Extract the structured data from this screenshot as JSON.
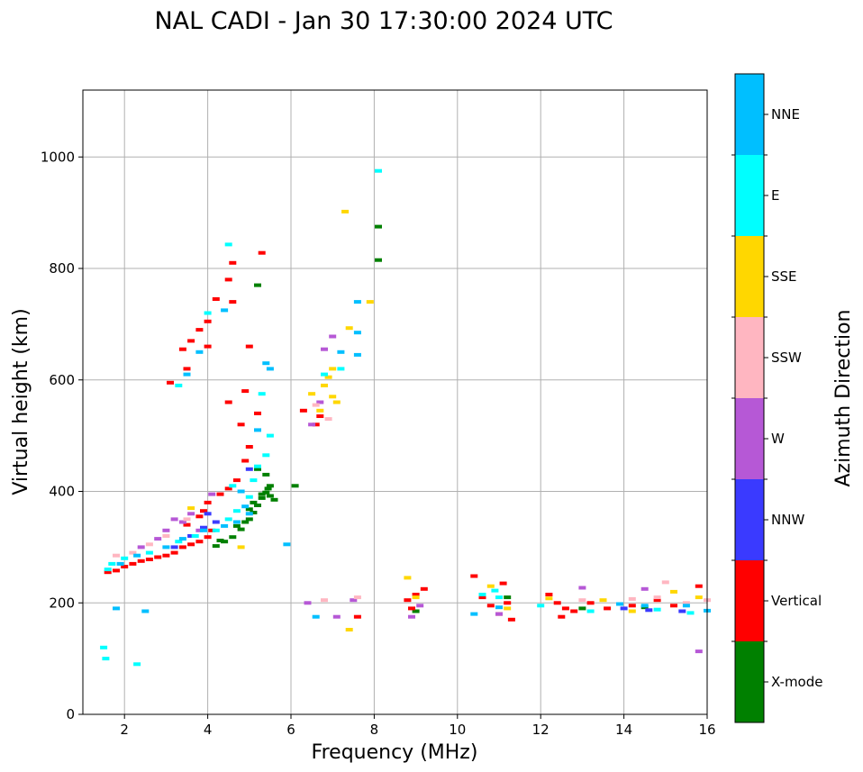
{
  "chart_data": {
    "type": "scatter",
    "title": "NAL CADI - Jan 30 17:30:00 2024 UTC",
    "xlabel": "Frequency (MHz)",
    "ylabel": "Virtual height (km)",
    "xlim": [
      1,
      16
    ],
    "ylim": [
      0,
      1120
    ],
    "xticks": [
      2,
      4,
      6,
      8,
      10,
      12,
      14,
      16
    ],
    "yticks": [
      0,
      200,
      400,
      600,
      800,
      1000
    ],
    "grid": true,
    "colorbar": {
      "label": "Azimuth Direction",
      "categories": [
        {
          "name": "X-mode",
          "color": "#008000"
        },
        {
          "name": "Vertical",
          "color": "#ff0000"
        },
        {
          "name": "NNW",
          "color": "#3a3aff"
        },
        {
          "name": "W",
          "color": "#b658d6"
        },
        {
          "name": "SSW",
          "color": "#ffb6c1"
        },
        {
          "name": "SSE",
          "color": "#ffd700"
        },
        {
          "name": "E",
          "color": "#00ffff"
        },
        {
          "name": "NNE",
          "color": "#00bfff"
        }
      ]
    },
    "series": [
      {
        "name": "X-mode",
        "points": [
          [
            4.2,
            302
          ],
          [
            4.4,
            310
          ],
          [
            4.6,
            318
          ],
          [
            4.8,
            332
          ],
          [
            5.0,
            350
          ],
          [
            5.1,
            362
          ],
          [
            5.2,
            375
          ],
          [
            5.3,
            388
          ],
          [
            5.4,
            398
          ],
          [
            5.5,
            410
          ],
          [
            5.2,
            440
          ],
          [
            5.4,
            430
          ],
          [
            4.7,
            338
          ],
          [
            4.9,
            345
          ],
          [
            5.0,
            368
          ],
          [
            5.1,
            380
          ],
          [
            5.3,
            395
          ],
          [
            5.45,
            405
          ],
          [
            5.5,
            392
          ],
          [
            5.6,
            385
          ],
          [
            4.3,
            312
          ],
          [
            5.2,
            770
          ],
          [
            8.1,
            875
          ],
          [
            8.1,
            815
          ],
          [
            6.1,
            410
          ],
          [
            9.0,
            185
          ],
          [
            11.2,
            210
          ],
          [
            13.0,
            190
          ],
          [
            14.5,
            192
          ]
        ]
      },
      {
        "name": "Vertical",
        "points": [
          [
            1.6,
            255
          ],
          [
            1.8,
            258
          ],
          [
            2.0,
            265
          ],
          [
            2.2,
            270
          ],
          [
            2.4,
            275
          ],
          [
            2.6,
            278
          ],
          [
            2.8,
            282
          ],
          [
            3.0,
            285
          ],
          [
            3.2,
            290
          ],
          [
            3.4,
            300
          ],
          [
            3.6,
            305
          ],
          [
            3.8,
            310
          ],
          [
            4.0,
            318
          ],
          [
            4.1,
            330
          ],
          [
            3.5,
            340
          ],
          [
            3.8,
            355
          ],
          [
            3.9,
            365
          ],
          [
            4.0,
            380
          ],
          [
            4.3,
            395
          ],
          [
            4.5,
            405
          ],
          [
            4.7,
            420
          ],
          [
            4.9,
            455
          ],
          [
            5.0,
            480
          ],
          [
            4.8,
            520
          ],
          [
            4.5,
            560
          ],
          [
            4.9,
            580
          ],
          [
            5.2,
            540
          ],
          [
            3.4,
            655
          ],
          [
            3.6,
            670
          ],
          [
            3.8,
            690
          ],
          [
            4.0,
            705
          ],
          [
            4.2,
            745
          ],
          [
            4.5,
            780
          ],
          [
            4.6,
            810
          ],
          [
            5.3,
            828
          ],
          [
            3.1,
            595
          ],
          [
            3.5,
            620
          ],
          [
            5.0,
            660
          ],
          [
            4.0,
            660
          ],
          [
            4.6,
            740
          ],
          [
            6.3,
            545
          ],
          [
            6.6,
            520
          ],
          [
            6.7,
            535
          ],
          [
            7.6,
            175
          ],
          [
            8.8,
            205
          ],
          [
            9.0,
            215
          ],
          [
            9.2,
            225
          ],
          [
            8.9,
            190
          ],
          [
            10.4,
            248
          ],
          [
            10.6,
            210
          ],
          [
            10.8,
            195
          ],
          [
            11.0,
            180
          ],
          [
            11.2,
            200
          ],
          [
            11.1,
            235
          ],
          [
            12.2,
            215
          ],
          [
            12.4,
            200
          ],
          [
            12.6,
            190
          ],
          [
            12.8,
            185
          ],
          [
            13.2,
            200
          ],
          [
            13.6,
            190
          ],
          [
            14.2,
            195
          ],
          [
            14.8,
            205
          ],
          [
            15.2,
            195
          ],
          [
            15.8,
            230
          ],
          [
            12.5,
            175
          ],
          [
            11.3,
            170
          ]
        ]
      },
      {
        "name": "NNW",
        "points": [
          [
            3.2,
            300
          ],
          [
            3.6,
            320
          ],
          [
            3.9,
            335
          ],
          [
            4.2,
            345
          ],
          [
            4.0,
            360
          ],
          [
            5.0,
            440
          ],
          [
            14.0,
            190
          ],
          [
            14.6,
            187
          ],
          [
            15.4,
            185
          ]
        ]
      },
      {
        "name": "W",
        "points": [
          [
            2.4,
            300
          ],
          [
            2.8,
            315
          ],
          [
            3.0,
            330
          ],
          [
            3.2,
            350
          ],
          [
            3.4,
            345
          ],
          [
            3.6,
            360
          ],
          [
            3.8,
            330
          ],
          [
            4.1,
            395
          ],
          [
            6.5,
            520
          ],
          [
            6.7,
            560
          ],
          [
            6.8,
            655
          ],
          [
            7.0,
            678
          ],
          [
            6.4,
            200
          ],
          [
            7.1,
            175
          ],
          [
            7.5,
            205
          ],
          [
            8.9,
            175
          ],
          [
            9.1,
            195
          ],
          [
            11.0,
            180
          ],
          [
            15.8,
            113
          ],
          [
            13.0,
            227
          ],
          [
            14.5,
            225
          ]
        ]
      },
      {
        "name": "SSW",
        "points": [
          [
            1.8,
            285
          ],
          [
            2.2,
            290
          ],
          [
            2.6,
            305
          ],
          [
            3.0,
            320
          ],
          [
            3.5,
            350
          ],
          [
            6.6,
            555
          ],
          [
            6.9,
            530
          ],
          [
            6.8,
            205
          ],
          [
            7.6,
            210
          ],
          [
            13.0,
            205
          ],
          [
            14.2,
            207
          ],
          [
            14.8,
            210
          ],
          [
            15.0,
            237
          ],
          [
            15.5,
            200
          ],
          [
            16.0,
            205
          ]
        ]
      },
      {
        "name": "SSE",
        "points": [
          [
            3.6,
            370
          ],
          [
            4.8,
            300
          ],
          [
            6.5,
            575
          ],
          [
            6.8,
            590
          ],
          [
            6.9,
            605
          ],
          [
            7.0,
            570
          ],
          [
            7.1,
            560
          ],
          [
            7.0,
            620
          ],
          [
            6.7,
            545
          ],
          [
            7.3,
            902
          ],
          [
            7.4,
            693
          ],
          [
            7.9,
            740
          ],
          [
            7.4,
            152
          ],
          [
            8.8,
            245
          ],
          [
            9.0,
            210
          ],
          [
            10.8,
            230
          ],
          [
            11.2,
            190
          ],
          [
            12.2,
            208
          ],
          [
            15.2,
            220
          ],
          [
            15.8,
            210
          ],
          [
            13.5,
            205
          ],
          [
            14.2,
            185
          ]
        ]
      },
      {
        "name": "E",
        "points": [
          [
            1.5,
            120
          ],
          [
            1.55,
            100
          ],
          [
            1.6,
            260
          ],
          [
            1.7,
            270
          ],
          [
            2.0,
            280
          ],
          [
            2.3,
            90
          ],
          [
            2.6,
            290
          ],
          [
            3.3,
            310
          ],
          [
            3.7,
            320
          ],
          [
            4.2,
            330
          ],
          [
            4.5,
            350
          ],
          [
            4.7,
            365
          ],
          [
            5.0,
            390
          ],
          [
            5.1,
            420
          ],
          [
            5.2,
            445
          ],
          [
            5.4,
            465
          ],
          [
            5.5,
            500
          ],
          [
            4.6,
            410
          ],
          [
            5.3,
            575
          ],
          [
            4.0,
            720
          ],
          [
            4.5,
            843
          ],
          [
            3.3,
            590
          ],
          [
            6.8,
            610
          ],
          [
            7.2,
            620
          ],
          [
            10.6,
            215
          ],
          [
            10.9,
            222
          ],
          [
            11.0,
            210
          ],
          [
            12.0,
            195
          ],
          [
            13.2,
            185
          ],
          [
            14.8,
            188
          ],
          [
            15.6,
            182
          ],
          [
            8.1,
            975
          ]
        ]
      },
      {
        "name": "NNE",
        "points": [
          [
            1.9,
            270
          ],
          [
            2.3,
            285
          ],
          [
            3.0,
            300
          ],
          [
            3.4,
            315
          ],
          [
            3.9,
            330
          ],
          [
            4.4,
            338
          ],
          [
            4.7,
            345
          ],
          [
            4.9,
            373
          ],
          [
            5.0,
            360
          ],
          [
            5.2,
            510
          ],
          [
            5.5,
            620
          ],
          [
            5.4,
            630
          ],
          [
            4.8,
            400
          ],
          [
            3.8,
            650
          ],
          [
            3.5,
            610
          ],
          [
            4.4,
            725
          ],
          [
            7.2,
            650
          ],
          [
            7.6,
            740
          ],
          [
            7.6,
            685
          ],
          [
            7.6,
            645
          ],
          [
            6.6,
            175
          ],
          [
            11.0,
            192
          ],
          [
            13.9,
            198
          ],
          [
            14.5,
            195
          ],
          [
            15.5,
            195
          ],
          [
            16.0,
            186
          ],
          [
            10.4,
            180
          ],
          [
            1.8,
            190
          ],
          [
            2.5,
            185
          ],
          [
            5.9,
            305
          ]
        ]
      }
    ]
  }
}
